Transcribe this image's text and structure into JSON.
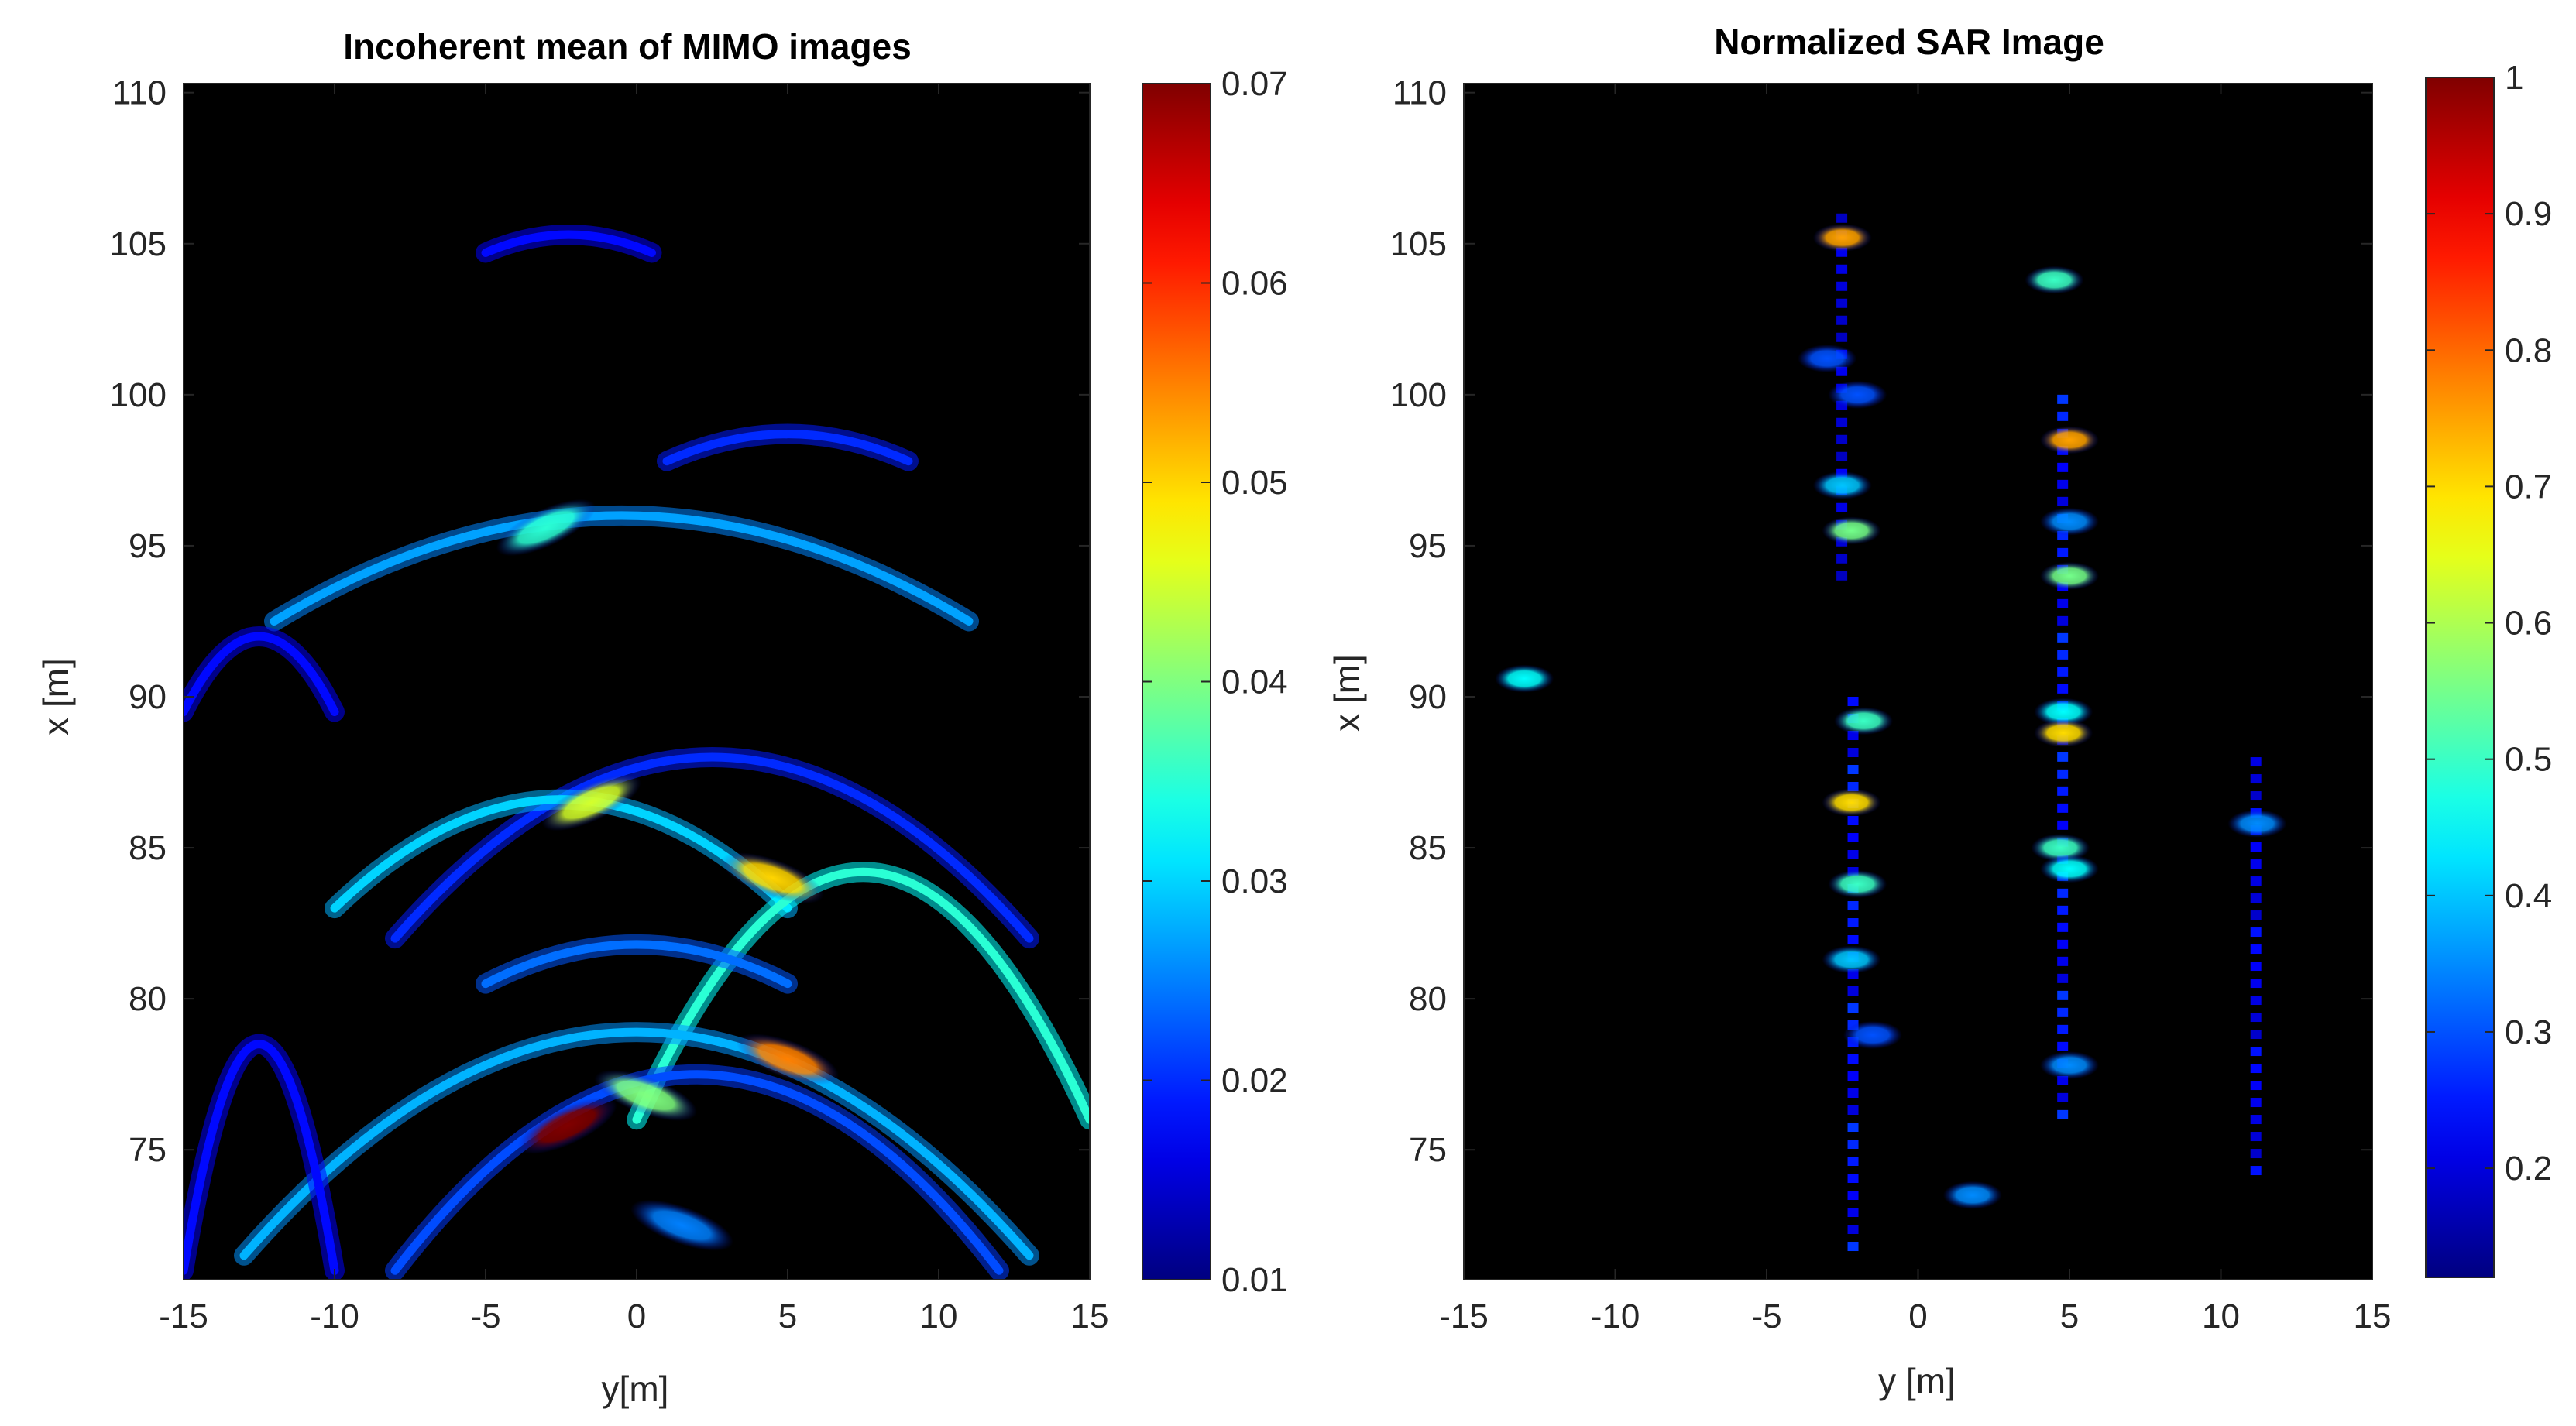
{
  "chart_data": [
    {
      "type": "heatmap",
      "title": "Incoherent mean of MIMO images",
      "xlabel": "y[m]",
      "ylabel": "x [m]",
      "xlim": [
        -15,
        15
      ],
      "ylim": [
        70.7,
        110.3
      ],
      "xticks": [
        -15,
        -10,
        -5,
        0,
        5,
        10,
        15
      ],
      "yticks": [
        75,
        80,
        85,
        90,
        95,
        100,
        105,
        110
      ],
      "colormap": "jet",
      "background": "#000000",
      "colorbar": {
        "min": 0.01,
        "max": 0.07,
        "ticks": [
          "0.01",
          "0.02",
          "0.03",
          "0.04",
          "0.05",
          "0.06",
          "0.07"
        ],
        "tick_values": [
          0.01,
          0.02,
          0.03,
          0.04,
          0.05,
          0.06,
          0.07
        ]
      },
      "arcs": [
        {
          "name": "arc-105",
          "y_from": -5,
          "y_to": 0.5,
          "x_edge": 104.7,
          "x_mid": 105.3,
          "value": 0.018
        },
        {
          "name": "arc-98.5",
          "y_from": 1,
          "y_to": 9,
          "x_edge": 97.8,
          "x_mid": 98.7,
          "value": 0.02
        },
        {
          "name": "arc-96",
          "y_from": -12,
          "y_to": 11,
          "x_edge": 92.5,
          "x_mid": 96.0,
          "value": 0.027
        },
        {
          "name": "arc-91",
          "y_from": -15,
          "y_to": -10,
          "x_edge": 89.5,
          "x_mid": 92.0,
          "value": 0.018
        },
        {
          "name": "arc-88",
          "y_from": -8,
          "y_to": 13,
          "x_edge": 82.0,
          "x_mid": 88.0,
          "value": 0.02
        },
        {
          "name": "arc-86.5",
          "y_from": -10,
          "y_to": 5,
          "x_edge": 83.0,
          "x_mid": 86.6,
          "value": 0.03
        },
        {
          "name": "arc-84",
          "y_from": 0,
          "y_to": 15,
          "x_edge": 76.0,
          "x_mid": 84.2,
          "value": 0.035
        },
        {
          "name": "arc-82",
          "y_from": -5,
          "y_to": 5,
          "x_edge": 80.5,
          "x_mid": 81.8,
          "value": 0.024
        },
        {
          "name": "arc-79",
          "y_from": -13,
          "y_to": 13,
          "x_edge": 71.5,
          "x_mid": 78.9,
          "value": 0.028
        },
        {
          "name": "arc-77",
          "y_from": -8,
          "y_to": 12,
          "x_edge": 71.0,
          "x_mid": 77.5,
          "value": 0.022
        },
        {
          "name": "arc-outer-left",
          "y_from": -15,
          "y_to": -10,
          "x_edge": 71.0,
          "x_mid": 78.5,
          "value": 0.018
        }
      ],
      "hotspots": [
        {
          "name": "peak-75.5",
          "y": -2.3,
          "x": 75.8,
          "value": 0.07
        },
        {
          "name": "peak-78",
          "y": 5.0,
          "x": 78.0,
          "value": 0.055
        },
        {
          "name": "peak-84",
          "y": 4.5,
          "x": 84.0,
          "value": 0.05
        },
        {
          "name": "peak-86.5",
          "y": -1.5,
          "x": 86.5,
          "value": 0.045
        },
        {
          "name": "peak-95.5",
          "y": -3.0,
          "x": 95.6,
          "value": 0.035
        },
        {
          "name": "peak-76.8",
          "y": 0.3,
          "x": 76.8,
          "value": 0.04
        },
        {
          "name": "blob-72",
          "y": 1.5,
          "x": 72.5,
          "value": 0.025
        }
      ]
    },
    {
      "type": "heatmap",
      "title": "Normalized SAR Image",
      "xlabel": "y [m]",
      "ylabel": "x [m]",
      "xlim": [
        -15,
        15
      ],
      "ylim": [
        70.7,
        110.3
      ],
      "xticks": [
        -15,
        -10,
        -5,
        0,
        5,
        10,
        15
      ],
      "yticks": [
        75,
        80,
        85,
        90,
        95,
        100,
        105,
        110
      ],
      "colormap": "jet",
      "background": "#000000",
      "colorbar": {
        "min": 0.12,
        "max": 1,
        "ticks": [
          "0.2",
          "0.3",
          "0.4",
          "0.5",
          "0.6",
          "0.7",
          "0.8",
          "0.9",
          "1"
        ],
        "tick_values": [
          0.2,
          0.3,
          0.4,
          0.5,
          0.6,
          0.7,
          0.8,
          0.9,
          1
        ]
      },
      "targets": [
        {
          "y": -2.5,
          "x": 105.2,
          "value": 0.75
        },
        {
          "y": 4.5,
          "x": 103.8,
          "value": 0.5
        },
        {
          "y": -3.0,
          "x": 101.2,
          "value": 0.3
        },
        {
          "y": -2.0,
          "x": 100.0,
          "value": 0.3
        },
        {
          "y": 5.0,
          "x": 98.5,
          "value": 0.75
        },
        {
          "y": -2.5,
          "x": 97.0,
          "value": 0.4
        },
        {
          "y": -2.2,
          "x": 95.5,
          "value": 0.55
        },
        {
          "y": 5.0,
          "x": 95.8,
          "value": 0.35
        },
        {
          "y": 5.0,
          "x": 94.0,
          "value": 0.55
        },
        {
          "y": 4.8,
          "x": 89.5,
          "value": 0.45
        },
        {
          "y": 4.8,
          "x": 88.8,
          "value": 0.7
        },
        {
          "y": -1.8,
          "x": 89.2,
          "value": 0.5
        },
        {
          "y": -2.2,
          "x": 86.5,
          "value": 0.7
        },
        {
          "y": 4.7,
          "x": 85.0,
          "value": 0.5
        },
        {
          "y": -2.0,
          "x": 83.8,
          "value": 0.5
        },
        {
          "y": -2.2,
          "x": 81.3,
          "value": 0.4
        },
        {
          "y": 5.0,
          "x": 84.3,
          "value": 0.45
        },
        {
          "y": -13.0,
          "x": 90.6,
          "value": 0.45
        },
        {
          "y": 11.2,
          "x": 85.8,
          "value": 0.35
        },
        {
          "y": 5.0,
          "x": 77.8,
          "value": 0.35
        },
        {
          "y": -1.5,
          "x": 78.8,
          "value": 0.3
        },
        {
          "y": 1.8,
          "x": 73.5,
          "value": 0.35
        }
      ],
      "streaks": [
        {
          "y": -2.2,
          "x_from": 71.5,
          "x_to": 90,
          "value": 0.25
        },
        {
          "y": 4.8,
          "x_from": 76,
          "x_to": 100,
          "value": 0.25
        },
        {
          "y": 11.2,
          "x_from": 74,
          "x_to": 88,
          "value": 0.22
        },
        {
          "y": -2.5,
          "x_from": 94,
          "x_to": 106,
          "value": 0.2
        }
      ]
    }
  ]
}
